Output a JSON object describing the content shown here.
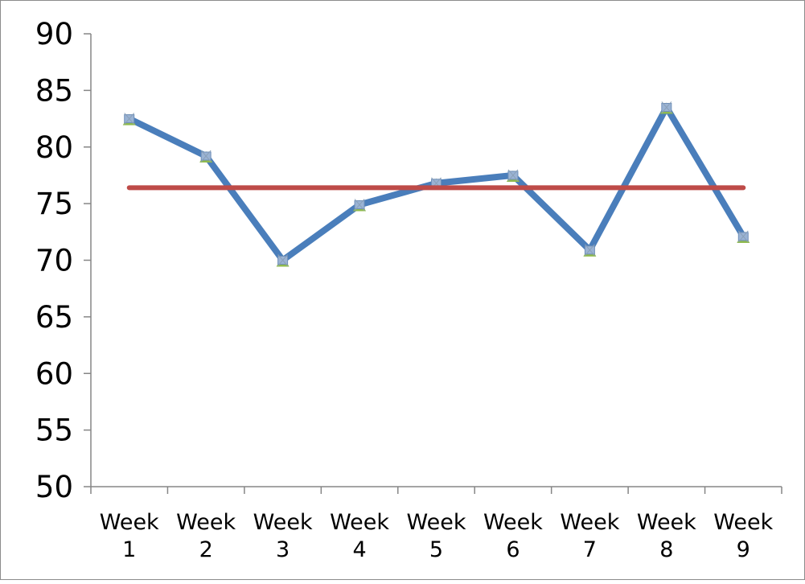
{
  "chart_data": {
    "type": "line",
    "title": "",
    "xlabel": "",
    "ylabel": "",
    "categories": [
      [
        "Week",
        "1"
      ],
      [
        "Week",
        "2"
      ],
      [
        "Week",
        "3"
      ],
      [
        "Week",
        "4"
      ],
      [
        "Week",
        "5"
      ],
      [
        "Week",
        "6"
      ],
      [
        "Week",
        "7"
      ],
      [
        "Week",
        "8"
      ],
      [
        "Week",
        "9"
      ]
    ],
    "ylim": [
      50,
      90
    ],
    "yticks": [
      "50",
      "55",
      "60",
      "65",
      "70",
      "75",
      "80",
      "85",
      "90"
    ],
    "grid": false,
    "legend": "none",
    "series": [
      {
        "values": [
          82.5,
          79.2,
          70.0,
          74.9,
          76.8,
          77.5,
          70.9,
          83.5,
          72.1
        ],
        "color": "#4a7ebb",
        "markers": true
      },
      {
        "values": [
          76.4,
          76.4,
          76.4,
          76.4,
          76.4,
          76.4,
          76.4,
          76.4,
          76.4
        ],
        "color": "#be4b48",
        "markers": false
      }
    ]
  }
}
